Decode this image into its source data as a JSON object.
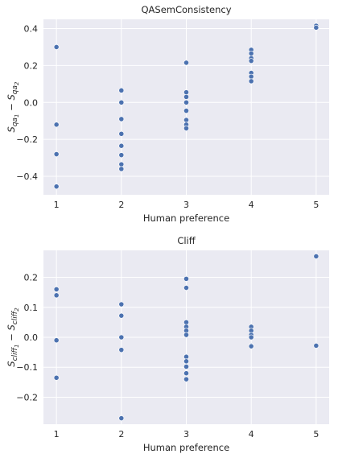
{
  "chart_data": [
    {
      "type": "scatter",
      "title": "QASemConsistency",
      "xlabel": "Human preference",
      "ylabel": "Sqa₁ − Sqa₂",
      "ylabel_parts": [
        "S",
        "qa",
        "1",
        "− S",
        "qa",
        "2"
      ],
      "xticks": [
        1,
        2,
        3,
        4,
        5
      ],
      "yticks": [
        -0.4,
        -0.2,
        0.0,
        0.2,
        0.4
      ],
      "ytick_labels": [
        "−0.4",
        "−0.2",
        "0.0",
        "0.2",
        "0.4"
      ],
      "xlim": [
        0.8,
        5.2
      ],
      "ylim": [
        -0.5,
        0.45
      ],
      "grid": true,
      "series": [
        {
          "x": [
            1,
            1,
            1,
            1,
            2,
            2,
            2,
            2,
            2,
            2,
            2,
            2,
            2,
            3,
            3,
            3,
            3,
            3,
            3,
            3,
            3,
            3,
            4,
            4,
            4,
            4,
            4,
            4,
            4,
            4,
            5,
            5
          ],
          "y": [
            0.3,
            -0.12,
            -0.28,
            -0.455,
            0.065,
            0.0,
            -0.09,
            -0.17,
            -0.235,
            -0.285,
            -0.335,
            -0.36,
            -0.36,
            0.215,
            0.055,
            0.03,
            0.0,
            -0.045,
            -0.095,
            -0.12,
            -0.14,
            -0.14,
            0.285,
            0.265,
            0.24,
            0.225,
            0.16,
            0.14,
            0.115,
            0.115,
            0.415,
            0.405
          ]
        }
      ]
    },
    {
      "type": "scatter",
      "title": "Cliff",
      "xlabel": "Human preference",
      "ylabel": "Scliff₁ − Scliff₂",
      "ylabel_parts": [
        "S",
        "cliff",
        "1",
        "− S",
        "cliff",
        "2"
      ],
      "xticks": [
        1,
        2,
        3,
        4,
        5
      ],
      "yticks": [
        -0.2,
        -0.1,
        0.0,
        0.1,
        0.2
      ],
      "ytick_labels": [
        "−0.2",
        "−0.1",
        "0.0",
        "0.1",
        "0.2"
      ],
      "xlim": [
        0.8,
        5.2
      ],
      "ylim": [
        -0.29,
        0.29
      ],
      "grid": true,
      "series": [
        {
          "x": [
            1,
            1,
            1,
            1,
            2,
            2,
            2,
            2,
            2,
            3,
            3,
            3,
            3,
            3,
            3,
            3,
            3,
            3,
            3,
            3,
            4,
            4,
            4,
            4,
            4,
            4,
            5,
            5
          ],
          "y": [
            0.16,
            0.14,
            -0.01,
            -0.135,
            0.11,
            0.072,
            0.0,
            -0.042,
            -0.27,
            0.195,
            0.165,
            0.05,
            0.035,
            0.022,
            0.008,
            -0.065,
            -0.08,
            -0.098,
            -0.12,
            -0.14,
            0.035,
            0.022,
            0.008,
            0.0,
            -0.028,
            -0.03,
            0.27,
            -0.028
          ]
        }
      ]
    }
  ]
}
